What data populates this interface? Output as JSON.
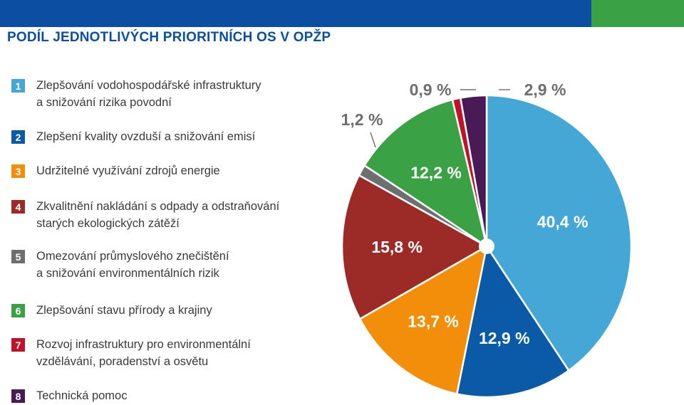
{
  "header": {
    "title": "PODÍL JEDNOTLIVÝCH PRIORITNÍCH OS V OPŽP"
  },
  "legend": {
    "items": [
      {
        "number": "1",
        "line1": "Zlepšování vodohospodářské infrastruktury",
        "line2": "a snižování rizika povodní",
        "color": "#45a7d6"
      },
      {
        "number": "2",
        "line1": "Zlepšení kvality ovzduší a snižování emisí",
        "line2": "",
        "color": "#0a5aa8"
      },
      {
        "number": "3",
        "line1": "Udržitelné využívání zdrojů energie",
        "line2": "",
        "color": "#f28e0a"
      },
      {
        "number": "4",
        "line1": "Zkvalitnění nakládání s odpady a odstraňování",
        "line2": "starých ekologických zátěží",
        "color": "#9c2b27"
      },
      {
        "number": "5",
        "line1": "Omezování průmyslového znečištění",
        "line2": "a snižování environmentálních rizik",
        "color": "#6d6e70"
      },
      {
        "number": "6",
        "line1": "Zlepšování stavu přírody a krajiny",
        "line2": "",
        "color": "#3aa245"
      },
      {
        "number": "7",
        "line1": "Rozvoj infrastruktury pro environmentální",
        "line2": "vzdělávání, poradenství a osvětu",
        "color": "#c1122a"
      },
      {
        "number": "8",
        "line1": "Technická pomoc",
        "line2": "",
        "color": "#4a1a57"
      }
    ]
  },
  "chart_data": {
    "type": "pie",
    "title": "PODÍL JEDNOTLIVÝCH PRIORITNÍCH OS V OPŽP",
    "slices": [
      {
        "category": "1",
        "value": 40.4,
        "label": "40,4 %",
        "color": "#45a7d6",
        "label_placement": "inside"
      },
      {
        "category": "2",
        "value": 12.9,
        "label": "12,9 %",
        "color": "#0a5aa8",
        "label_placement": "inside"
      },
      {
        "category": "3",
        "value": 13.7,
        "label": "13,7 %",
        "color": "#f28e0a",
        "label_placement": "inside"
      },
      {
        "category": "4",
        "value": 15.8,
        "label": "15,8 %",
        "color": "#9c2b27",
        "label_placement": "inside"
      },
      {
        "category": "5",
        "value": 1.2,
        "label": "1,2 %",
        "color": "#6d6e70",
        "label_placement": "outside"
      },
      {
        "category": "6",
        "value": 12.2,
        "label": "12,2 %",
        "color": "#3aa245",
        "label_placement": "inside"
      },
      {
        "category": "7",
        "value": 0.9,
        "label": "0,9 %",
        "color": "#c1122a",
        "label_placement": "outside"
      },
      {
        "category": "8",
        "value": 2.9,
        "label": "2,9 %",
        "color": "#4a1a57",
        "label_placement": "outside"
      }
    ],
    "start": "12 o'clock",
    "direction": "clockwise",
    "legend_position": "left"
  }
}
